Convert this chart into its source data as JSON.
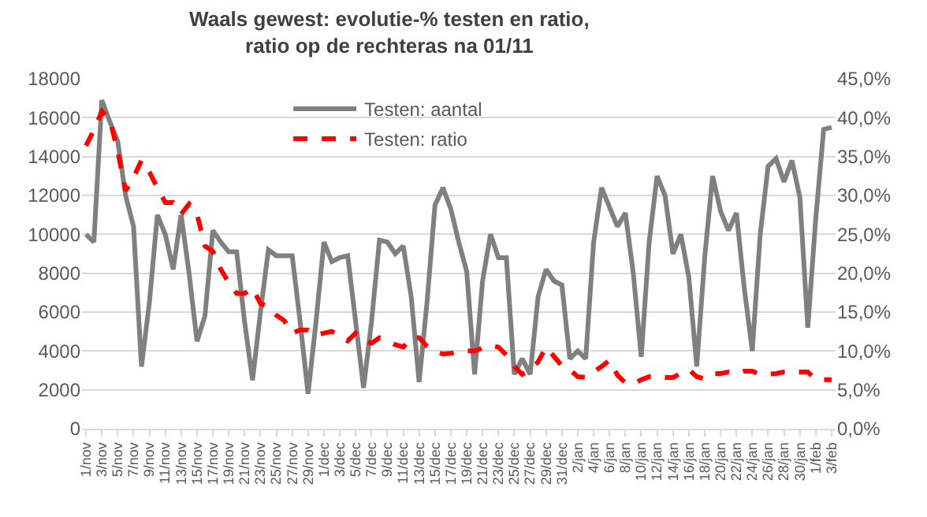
{
  "chart_data": {
    "type": "line",
    "title": "Waals gewest: evolutie-% testen en ratio,\nratio op de rechteras na 01/11",
    "categories": [
      "1/nov",
      null,
      "3/nov",
      null,
      "5/nov",
      null,
      "7/nov",
      null,
      "9/nov",
      null,
      "11/nov",
      null,
      "13/nov",
      null,
      "15/nov",
      null,
      "17/nov",
      null,
      "19/nov",
      null,
      "21/nov",
      null,
      "23/nov",
      null,
      "25/nov",
      null,
      "27/nov",
      null,
      "29/nov",
      null,
      "1/dec",
      null,
      "3/dec",
      null,
      "5/dec",
      null,
      "7/dec",
      null,
      "9/dec",
      null,
      "11/dec",
      null,
      "13/dec",
      null,
      "15/dec",
      null,
      "17/dec",
      null,
      "19/dec",
      null,
      "21/dec",
      null,
      "23/dec",
      null,
      "25/dec",
      null,
      "27/dec",
      null,
      "29/dec",
      null,
      "31/dec",
      null,
      "2/jan",
      null,
      "4/jan",
      null,
      "6/jan",
      null,
      "8/jan",
      null,
      "10/jan",
      null,
      "12/jan",
      null,
      "14/jan",
      null,
      "16/jan",
      null,
      "18/jan",
      null,
      "20/jan",
      null,
      "22/jan",
      null,
      "24/jan",
      null,
      "26/jan",
      null,
      "28/jan",
      null,
      "30/jan",
      null,
      "1/feb",
      null,
      "3/feb"
    ],
    "series": [
      {
        "name": "Testen: aantal",
        "color": "#808080",
        "line_style": "solid",
        "values": [
          10000,
          9600,
          16900,
          15800,
          14800,
          12000,
          10400,
          3200,
          6500,
          11000,
          10000,
          8200,
          11000,
          8000,
          4500,
          5800,
          10200,
          9600,
          9100,
          9100,
          5500,
          2500,
          6000,
          9200,
          8900,
          8900,
          8900,
          5500,
          1800,
          5500,
          9600,
          8600,
          8800,
          8900,
          5500,
          2100,
          5500,
          9700,
          9600,
          9000,
          9400,
          6800,
          2400,
          6500,
          11500,
          12400,
          11300,
          9600,
          8100,
          2800,
          7600,
          10000,
          8800,
          8800,
          2800,
          3600,
          2800,
          6800,
          8200,
          7600,
          7400,
          3600,
          4000,
          3600,
          9600,
          12400,
          11400,
          10400,
          11100,
          8000,
          3700,
          9600,
          13000,
          12000,
          9000,
          10000,
          7800,
          3200,
          8800,
          13000,
          11200,
          10200,
          11100,
          7200,
          4000,
          10000,
          13500,
          13900,
          12700,
          13800,
          11900,
          5200,
          10800,
          15400,
          15500
        ]
      },
      {
        "name": "Testen: ratio",
        "color": "#ff0000",
        "line_style": "dashed",
        "axis": "y2",
        "values": [
          36.4,
          38.4,
          40.8,
          39.8,
          35.7,
          30.6,
          32.3,
          34.5,
          33.0,
          31.0,
          29.1,
          29.1,
          27.6,
          28.9,
          27.6,
          23.5,
          22.8,
          20.5,
          18.8,
          17.4,
          17.4,
          18.1,
          16.1,
          15.7,
          14.6,
          13.9,
          12.3,
          12.7,
          12.7,
          12.0,
          12.3,
          12.5,
          12.0,
          11.3,
          12.3,
          11.3,
          11.0,
          11.7,
          11.3,
          10.8,
          10.5,
          11.7,
          11.7,
          10.6,
          10.0,
          9.6,
          9.7,
          9.9,
          10.0,
          10.0,
          10.4,
          10.7,
          10.5,
          9.5,
          8.0,
          7.0,
          7.6,
          8.6,
          10.5,
          9.3,
          8.1,
          7.6,
          6.7,
          6.6,
          7.3,
          8.0,
          8.8,
          6.9,
          5.9,
          5.8,
          6.3,
          6.7,
          6.7,
          6.6,
          6.6,
          7.1,
          7.6,
          6.7,
          6.4,
          7.1,
          7.1,
          7.3,
          7.1,
          7.4,
          7.4,
          7.0,
          7.0,
          7.1,
          7.3,
          7.3,
          7.3,
          7.3,
          6.3,
          6.3,
          6.3
        ]
      }
    ],
    "ylim": [
      0,
      18000
    ],
    "yticks": [
      0,
      2000,
      4000,
      6000,
      8000,
      10000,
      12000,
      14000,
      16000,
      18000
    ],
    "y2lim": [
      0,
      45
    ],
    "y2ticks": [
      {
        "value": 0,
        "label": "0,0%"
      },
      {
        "value": 5,
        "label": "5,0%"
      },
      {
        "value": 10,
        "label": "10,0%"
      },
      {
        "value": 15,
        "label": "15,0%"
      },
      {
        "value": 20,
        "label": "20,0%"
      },
      {
        "value": 25,
        "label": "25,0%"
      },
      {
        "value": 30,
        "label": "30,0%"
      },
      {
        "value": 35,
        "label": "35,0%"
      },
      {
        "value": 40,
        "label": "40,0%"
      },
      {
        "value": 45,
        "label": "45,0%"
      }
    ],
    "grid": "y",
    "legend": "top",
    "marker": "none"
  }
}
